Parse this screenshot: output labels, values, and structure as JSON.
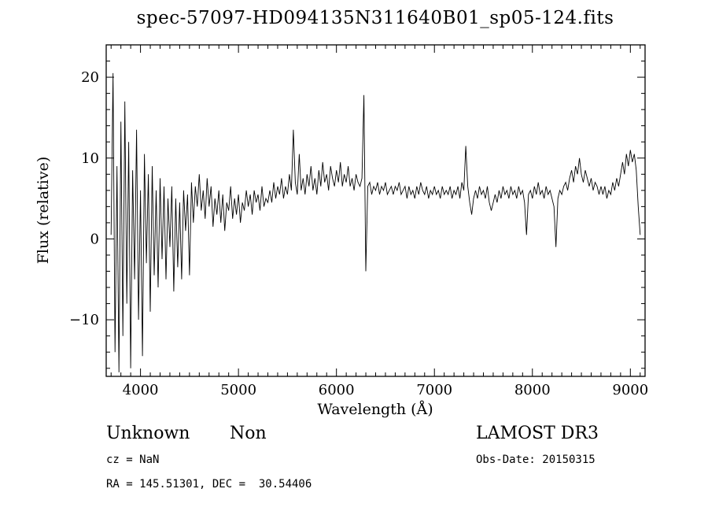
{
  "title": "spec-57097-HD094135N311640B01_sp05-124.fits",
  "annotations": {
    "object_class": "Unknown",
    "object_subclass": "Non",
    "survey": "LAMOST DR3",
    "cz": "cz = NaN",
    "obs_date": "Obs-Date: 20150315",
    "coords": "RA = 145.51301, DEC =  30.54406"
  },
  "chart_data": {
    "type": "line",
    "title": "spec-57097-HD094135N311640B01_sp05-124.fits",
    "xlabel": "Wavelength (Å)",
    "ylabel": "Flux (relative)",
    "xlim": [
      3650,
      9150
    ],
    "ylim": [
      -17,
      24
    ],
    "xticks": [
      4000,
      5000,
      6000,
      7000,
      8000,
      9000
    ],
    "yticks": [
      -10,
      0,
      10,
      20
    ],
    "x_minor_step": 100,
    "y_minor_step": 2,
    "grid": false,
    "legend": "none",
    "line_color": "#000000",
    "x_start": 3700,
    "x_step": 20,
    "flux": [
      0.5,
      20.5,
      -14.0,
      9.0,
      -16.5,
      14.5,
      -12.0,
      17.0,
      -8.0,
      12.0,
      -16.0,
      8.5,
      -5.0,
      13.5,
      -10.0,
      6.0,
      -14.5,
      10.5,
      -3.0,
      8.0,
      -9.0,
      9.0,
      -4.5,
      6.0,
      -6.0,
      7.5,
      -2.5,
      6.5,
      -5.0,
      5.0,
      -1.0,
      6.5,
      -6.5,
      5.0,
      -3.5,
      4.5,
      -5.0,
      6.0,
      1.0,
      5.5,
      -4.5,
      7.0,
      2.0,
      6.5,
      4.0,
      8.0,
      3.5,
      6.0,
      2.5,
      7.5,
      4.0,
      6.5,
      1.5,
      5.0,
      3.0,
      6.0,
      2.0,
      5.5,
      1.0,
      4.5,
      3.5,
      6.5,
      2.5,
      5.0,
      3.0,
      5.5,
      2.0,
      4.5,
      3.5,
      6.0,
      4.0,
      5.5,
      3.0,
      6.0,
      4.5,
      5.5,
      3.5,
      6.5,
      4.0,
      5.0,
      4.5,
      6.0,
      4.5,
      7.0,
      5.0,
      6.5,
      5.5,
      7.5,
      5.0,
      6.5,
      5.5,
      8.0,
      6.0,
      13.5,
      7.0,
      5.5,
      10.5,
      6.0,
      7.5,
      5.5,
      8.0,
      6.5,
      9.0,
      6.0,
      7.5,
      5.5,
      8.5,
      6.5,
      9.5,
      7.0,
      8.0,
      6.0,
      9.0,
      7.5,
      6.5,
      8.5,
      7.0,
      9.5,
      6.5,
      8.0,
      7.0,
      9.0,
      6.5,
      7.5,
      6.0,
      8.0,
      7.0,
      6.5,
      7.5,
      17.8,
      -4.0,
      6.5,
      7.0,
      5.5,
      6.5,
      6.0,
      7.0,
      5.5,
      6.5,
      6.0,
      7.0,
      5.5,
      6.0,
      6.5,
      5.5,
      6.5,
      6.0,
      7.0,
      5.5,
      6.0,
      6.5,
      5.0,
      6.5,
      5.5,
      6.0,
      5.0,
      6.5,
      5.5,
      7.0,
      6.0,
      5.5,
      6.5,
      5.0,
      6.0,
      5.5,
      6.5,
      5.5,
      6.0,
      5.0,
      6.5,
      5.5,
      6.0,
      5.5,
      6.5,
      5.0,
      6.0,
      5.5,
      6.5,
      5.0,
      7.0,
      6.0,
      11.5,
      6.5,
      4.5,
      3.0,
      5.0,
      6.0,
      5.0,
      6.5,
      5.5,
      6.0,
      5.0,
      6.5,
      4.5,
      3.5,
      4.5,
      5.5,
      4.5,
      6.0,
      5.0,
      6.5,
      5.5,
      6.0,
      5.0,
      6.5,
      5.5,
      6.0,
      5.0,
      6.5,
      5.5,
      6.0,
      4.5,
      0.5,
      5.5,
      6.0,
      5.0,
      6.5,
      5.5,
      7.0,
      5.5,
      6.0,
      5.0,
      6.5,
      5.5,
      6.0,
      5.0,
      4.0,
      -1.0,
      5.0,
      6.0,
      5.5,
      6.5,
      7.0,
      6.0,
      7.5,
      8.5,
      7.0,
      9.0,
      8.0,
      10.0,
      8.0,
      7.0,
      8.5,
      7.5,
      6.5,
      7.5,
      6.0,
      7.0,
      6.5,
      5.5,
      6.5,
      5.5,
      6.5,
      5.0,
      6.0,
      5.5,
      7.0,
      6.0,
      7.5,
      6.5,
      8.0,
      9.5,
      8.0,
      10.5,
      9.0,
      11.0,
      9.5,
      10.5,
      8.5,
      4.0,
      0.5
    ]
  }
}
